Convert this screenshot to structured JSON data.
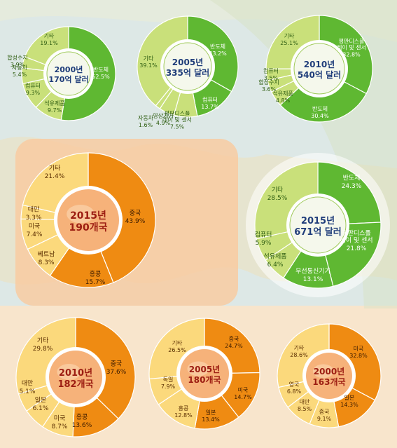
{
  "colors": {
    "green_dark": "#5fb832",
    "green_light": "#c9e07a",
    "green_text": "#2f5e12",
    "orange_dark": "#ef8b12",
    "orange_light": "#fbd97c",
    "orange_text": "#5a2d00",
    "center_green_text": "#1f3d7a",
    "center_orange_text": "#9c1d12"
  },
  "chart_data": [
    {
      "type": "pie",
      "group": "export_items",
      "center_line1": "2000년",
      "center_line2": "170억 달러",
      "slices": [
        {
          "name": "반도체",
          "value": 52.5,
          "value_text": "52.5%",
          "tone": "dark"
        },
        {
          "name": "석유제품",
          "value": 9.7,
          "value_text": "9.7%",
          "tone": "light"
        },
        {
          "name": "컴퓨터",
          "value": 9.3,
          "value_text": "9.3%",
          "tone": "light"
        },
        {
          "name": "자동차",
          "value": 5.4,
          "value_text": "5.4%",
          "tone": "light"
        },
        {
          "name": "합성수지",
          "value": 3.9,
          "value_text": "3.9%",
          "tone": "light"
        },
        {
          "name": "기타",
          "value": 19.1,
          "value_text": "19.1%",
          "tone": "light"
        }
      ]
    },
    {
      "type": "pie",
      "group": "export_items",
      "center_line1": "2005년",
      "center_line2": "335억 달러",
      "slices": [
        {
          "name": "반도체",
          "value": 33.2,
          "value_text": "33.2%",
          "tone": "dark"
        },
        {
          "name": "컴퓨터",
          "value": 13.7,
          "value_text": "13.7%",
          "tone": "dark"
        },
        {
          "name": "평판디스플레이 및 센서",
          "value": 7.5,
          "value_text": "7.5%",
          "tone": "light"
        },
        {
          "name": "영상기기",
          "value": 4.9,
          "value_text": "4.9%",
          "tone": "light"
        },
        {
          "name": "자동차",
          "value": 1.6,
          "value_text": "1.6%",
          "tone": "light"
        },
        {
          "name": "기타",
          "value": 39.1,
          "value_text": "39.1%",
          "tone": "light"
        }
      ]
    },
    {
      "type": "pie",
      "group": "export_items",
      "center_line1": "2010년",
      "center_line2": "540억 달러",
      "slices": [
        {
          "name": "평판디스플레이 및 센서",
          "value": 32.8,
          "value_text": "32.8%",
          "tone": "dark"
        },
        {
          "name": "반도체",
          "value": 30.4,
          "value_text": "30.4%",
          "tone": "dark"
        },
        {
          "name": "석유제품",
          "value": 4.8,
          "value_text": "4.8%",
          "tone": "light"
        },
        {
          "name": "합성수지",
          "value": 3.6,
          "value_text": "3.6%",
          "tone": "light"
        },
        {
          "name": "컴퓨터",
          "value": 3.5,
          "value_text": "3.5%",
          "tone": "light"
        },
        {
          "name": "기타",
          "value": 25.1,
          "value_text": "25.1%",
          "tone": "light"
        }
      ]
    },
    {
      "type": "pie",
      "group": "export_items",
      "center_line1": "2015년",
      "center_line2": "671억 달러",
      "slices": [
        {
          "name": "반도체",
          "value": 24.3,
          "value_text": "24.3%",
          "tone": "dark"
        },
        {
          "name": "평판디스플레이 및 센서",
          "value": 21.8,
          "value_text": "21.8%",
          "tone": "dark"
        },
        {
          "name": "무선통신기기",
          "value": 13.1,
          "value_text": "13.1%",
          "tone": "dark"
        },
        {
          "name": "석유제품",
          "value": 6.4,
          "value_text": "6.4%",
          "tone": "light"
        },
        {
          "name": "컴퓨터",
          "value": 5.9,
          "value_text": "5.9%",
          "tone": "light"
        },
        {
          "name": "기타",
          "value": 28.5,
          "value_text": "28.5%",
          "tone": "light"
        }
      ]
    },
    {
      "type": "pie",
      "group": "export_countries",
      "center_line1": "2015년",
      "center_line2": "190개국",
      "slices": [
        {
          "name": "중국",
          "value": 43.9,
          "value_text": "43.9%",
          "tone": "dark"
        },
        {
          "name": "홍콩",
          "value": 15.7,
          "value_text": "15.7%",
          "tone": "dark"
        },
        {
          "name": "베트남",
          "value": 8.3,
          "value_text": "8.3%",
          "tone": "light"
        },
        {
          "name": "미국",
          "value": 7.4,
          "value_text": "7.4%",
          "tone": "light"
        },
        {
          "name": "대만",
          "value": 3.3,
          "value_text": "3.3%",
          "tone": "light"
        },
        {
          "name": "기타",
          "value": 21.4,
          "value_text": "21.4%",
          "tone": "light"
        }
      ]
    },
    {
      "type": "pie",
      "group": "export_countries",
      "center_line1": "2010년",
      "center_line2": "182개국",
      "slices": [
        {
          "name": "중국",
          "value": 37.6,
          "value_text": "37.6%",
          "tone": "dark"
        },
        {
          "name": "홍콩",
          "value": 13.6,
          "value_text": "13.6%",
          "tone": "dark"
        },
        {
          "name": "미국",
          "value": 8.7,
          "value_text": "8.7%",
          "tone": "light"
        },
        {
          "name": "일본",
          "value": 6.1,
          "value_text": "6.1%",
          "tone": "light"
        },
        {
          "name": "대만",
          "value": 5.1,
          "value_text": "5.1%",
          "tone": "light"
        },
        {
          "name": "기타",
          "value": 29.8,
          "value_text": "29.8%",
          "tone": "light"
        }
      ]
    },
    {
      "type": "pie",
      "group": "export_countries",
      "center_line1": "2005년",
      "center_line2": "180개국",
      "slices": [
        {
          "name": "중국",
          "value": 24.7,
          "value_text": "24.7%",
          "tone": "dark"
        },
        {
          "name": "미국",
          "value": 14.7,
          "value_text": "14.7%",
          "tone": "dark"
        },
        {
          "name": "일본",
          "value": 13.4,
          "value_text": "13.4%",
          "tone": "dark"
        },
        {
          "name": "홍콩",
          "value": 12.8,
          "value_text": "12.8%",
          "tone": "light"
        },
        {
          "name": "독일",
          "value": 7.9,
          "value_text": "7.9%",
          "tone": "light"
        },
        {
          "name": "기타",
          "value": 26.5,
          "value_text": "26.5%",
          "tone": "light"
        }
      ]
    },
    {
      "type": "pie",
      "group": "export_countries",
      "center_line1": "2000년",
      "center_line2": "163개국",
      "slices": [
        {
          "name": "미국",
          "value": 32.8,
          "value_text": "32.8%",
          "tone": "dark"
        },
        {
          "name": "일본",
          "value": 14.3,
          "value_text": "14.3%",
          "tone": "dark"
        },
        {
          "name": "중국",
          "value": 9.1,
          "value_text": "9.1%",
          "tone": "light"
        },
        {
          "name": "대만",
          "value": 8.5,
          "value_text": "8.5%",
          "tone": "light"
        },
        {
          "name": "영국",
          "value": 6.8,
          "value_text": "6.8%",
          "tone": "light"
        },
        {
          "name": "기타",
          "value": 28.6,
          "value_text": "28.6%",
          "tone": "light"
        }
      ]
    }
  ]
}
